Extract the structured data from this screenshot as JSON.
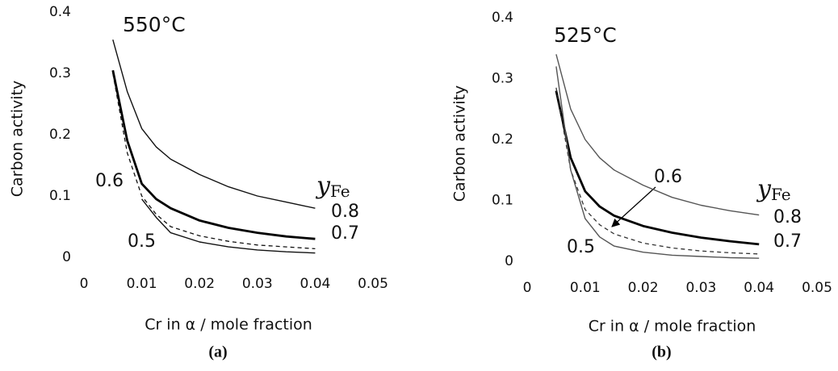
{
  "chart_data": [
    {
      "type": "line",
      "title": "550°C",
      "xlabel": "Cr in α / mole fraction",
      "ylabel": "Carbon activity",
      "caption": "(a)",
      "annotation": {
        "symbol": "y",
        "subscript": "Fe"
      },
      "x": [
        0.005,
        0.0075,
        0.01,
        0.0125,
        0.015,
        0.02,
        0.025,
        0.03,
        0.035,
        0.04
      ],
      "series": [
        {
          "name": "0.8",
          "color": "#111111",
          "line_style": "solid",
          "values": [
            0.355,
            0.27,
            0.21,
            0.18,
            0.16,
            0.135,
            0.115,
            0.1,
            0.09,
            0.08
          ]
        },
        {
          "name": "0.7",
          "color": "#000000",
          "line_style": "bold",
          "values": [
            0.305,
            0.19,
            0.12,
            0.095,
            0.08,
            0.06,
            0.048,
            0.04,
            0.034,
            0.03
          ]
        },
        {
          "name": "0.6",
          "color": "#111111",
          "line_style": "dashed",
          "values": [
            0.3,
            0.17,
            0.1,
            0.07,
            0.05,
            0.035,
            0.026,
            0.02,
            0.017,
            0.014
          ]
        },
        {
          "name": "0.5",
          "color": "#111111",
          "line_style": "solid",
          "values": [
            null,
            null,
            0.095,
            0.065,
            0.04,
            0.025,
            0.017,
            0.012,
            0.009,
            0.007
          ]
        }
      ],
      "xlim": [
        0,
        0.05
      ],
      "xticks": [
        0,
        0.01,
        0.02,
        0.03,
        0.04,
        0.05
      ],
      "ylim": [
        0,
        0.4
      ],
      "yticks": [
        0,
        0.1,
        0.2,
        0.3,
        0.4
      ],
      "grid": false
    },
    {
      "type": "line",
      "title": "525°C",
      "xlabel": "Cr in α / mole fraction",
      "ylabel": "Carbon activity",
      "caption": "(b)",
      "annotation": {
        "symbol": "y",
        "subscript": "Fe"
      },
      "x": [
        0.005,
        0.0075,
        0.01,
        0.0125,
        0.015,
        0.02,
        0.025,
        0.03,
        0.035,
        0.04
      ],
      "series": [
        {
          "name": "0.8",
          "color": "#555555",
          "line_style": "solid",
          "values": [
            0.34,
            0.25,
            0.2,
            0.17,
            0.15,
            0.125,
            0.105,
            0.092,
            0.083,
            0.076
          ]
        },
        {
          "name": "0.7",
          "color": "#000000",
          "line_style": "bold",
          "values": [
            0.28,
            0.17,
            0.115,
            0.09,
            0.075,
            0.058,
            0.047,
            0.039,
            0.033,
            0.028
          ]
        },
        {
          "name": "0.6",
          "color": "#333333",
          "line_style": "dashed",
          "values": [
            0.285,
            0.15,
            0.085,
            0.06,
            0.045,
            0.03,
            0.022,
            0.017,
            0.014,
            0.012
          ]
        },
        {
          "name": "0.5",
          "color": "#555555",
          "line_style": "solid",
          "values": [
            0.32,
            0.15,
            0.07,
            0.04,
            0.025,
            0.015,
            0.01,
            0.008,
            0.006,
            0.005
          ]
        }
      ],
      "xlim": [
        0,
        0.05
      ],
      "xticks": [
        0,
        0.01,
        0.02,
        0.03,
        0.04,
        0.05
      ],
      "ylim": [
        0,
        0.4
      ],
      "yticks": [
        0,
        0.1,
        0.2,
        0.3,
        0.4
      ],
      "grid": false
    }
  ]
}
